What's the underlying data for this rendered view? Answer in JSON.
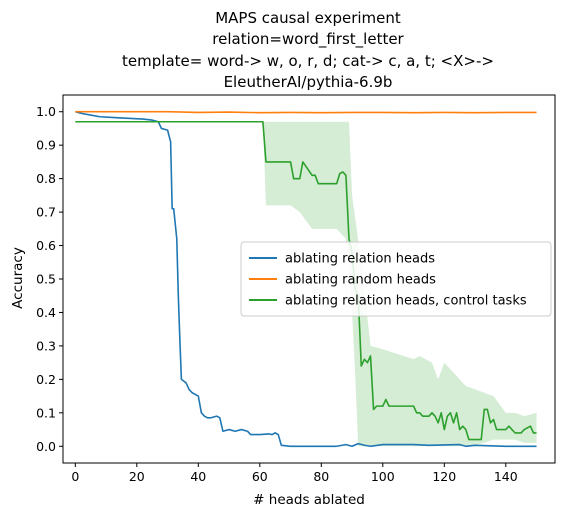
{
  "chart_data": {
    "type": "line",
    "title_lines": [
      "MAPS causal experiment",
      "relation=word_first_letter",
      "template= word-> w, o, r, d; cat-> c, a, t; <X>->",
      "EleutherAI/pythia-6.9b"
    ],
    "xlabel": "# heads ablated",
    "ylabel": "Accuracy",
    "xlim": [
      -4,
      156
    ],
    "ylim": [
      -0.05,
      1.05
    ],
    "xticks": [
      0,
      20,
      40,
      60,
      80,
      100,
      120,
      140
    ],
    "xtick_labels": [
      "0",
      "20",
      "40",
      "60",
      "80",
      "100",
      "120",
      "140"
    ],
    "yticks": [
      0.0,
      0.1,
      0.2,
      0.3,
      0.4,
      0.5,
      0.6,
      0.7,
      0.8,
      0.9,
      1.0
    ],
    "ytick_labels": [
      "0.0",
      "0.1",
      "0.2",
      "0.3",
      "0.4",
      "0.5",
      "0.6",
      "0.7",
      "0.8",
      "0.9",
      "1.0"
    ],
    "grid": false,
    "legend_position": "center-right",
    "series": [
      {
        "name": "ablating relation heads",
        "color": "#1f77b4",
        "points": [
          [
            0,
            1.0
          ],
          [
            2,
            0.995
          ],
          [
            5,
            0.99
          ],
          [
            8,
            0.985
          ],
          [
            12,
            0.983
          ],
          [
            18,
            0.98
          ],
          [
            22,
            0.978
          ],
          [
            25,
            0.975
          ],
          [
            27,
            0.97
          ],
          [
            28,
            0.95
          ],
          [
            30,
            0.945
          ],
          [
            31,
            0.91
          ],
          [
            31.5,
            0.71
          ],
          [
            32,
            0.71
          ],
          [
            33,
            0.62
          ],
          [
            33.5,
            0.45
          ],
          [
            34,
            0.32
          ],
          [
            34.5,
            0.2
          ],
          [
            36,
            0.19
          ],
          [
            37,
            0.17
          ],
          [
            38,
            0.16
          ],
          [
            40,
            0.15
          ],
          [
            41,
            0.1
          ],
          [
            42,
            0.09
          ],
          [
            43,
            0.085
          ],
          [
            44,
            0.085
          ],
          [
            46,
            0.09
          ],
          [
            47,
            0.085
          ],
          [
            48,
            0.045
          ],
          [
            50,
            0.05
          ],
          [
            52,
            0.045
          ],
          [
            54,
            0.05
          ],
          [
            56,
            0.045
          ],
          [
            57,
            0.035
          ],
          [
            60,
            0.035
          ],
          [
            63,
            0.037
          ],
          [
            64,
            0.035
          ],
          [
            65,
            0.04
          ],
          [
            66,
            0.035
          ],
          [
            67,
            0.003
          ],
          [
            70,
            0.0
          ],
          [
            85,
            0.0
          ],
          [
            88,
            0.005
          ],
          [
            90,
            0.0
          ],
          [
            92,
            0.008
          ],
          [
            94,
            0.003
          ],
          [
            96,
            0.0
          ],
          [
            100,
            0.005
          ],
          [
            110,
            0.005
          ],
          [
            115,
            0.003
          ],
          [
            125,
            0.005
          ],
          [
            127,
            0.0
          ],
          [
            130,
            0.003
          ],
          [
            140,
            0.0
          ],
          [
            150,
            0.0
          ]
        ]
      },
      {
        "name": "ablating random heads",
        "color": "#ff7f0e",
        "points": [
          [
            0,
            1.0
          ],
          [
            10,
            1.0
          ],
          [
            20,
            1.0
          ],
          [
            30,
            1.0
          ],
          [
            40,
            0.998
          ],
          [
            50,
            0.999
          ],
          [
            60,
            0.997
          ],
          [
            70,
            0.998
          ],
          [
            80,
            0.997
          ],
          [
            90,
            0.998
          ],
          [
            100,
            0.998
          ],
          [
            110,
            0.997
          ],
          [
            120,
            0.998
          ],
          [
            130,
            0.997
          ],
          [
            140,
            0.998
          ],
          [
            150,
            0.998
          ]
        ]
      },
      {
        "name": "ablating relation heads, control tasks",
        "color": "#2ca02c",
        "points": [
          [
            0,
            0.97
          ],
          [
            20,
            0.97
          ],
          [
            40,
            0.97
          ],
          [
            61,
            0.97
          ],
          [
            62,
            0.85
          ],
          [
            70,
            0.85
          ],
          [
            71,
            0.8
          ],
          [
            73,
            0.8
          ],
          [
            74,
            0.85
          ],
          [
            77,
            0.81
          ],
          [
            78,
            0.81
          ],
          [
            79,
            0.785
          ],
          [
            85,
            0.785
          ],
          [
            86,
            0.815
          ],
          [
            87,
            0.82
          ],
          [
            88,
            0.81
          ],
          [
            89,
            0.62
          ],
          [
            90,
            0.58
          ],
          [
            91,
            0.47
          ],
          [
            92,
            0.45
          ],
          [
            93,
            0.24
          ],
          [
            94,
            0.26
          ],
          [
            95,
            0.25
          ],
          [
            96,
            0.27
          ],
          [
            97,
            0.11
          ],
          [
            98,
            0.12
          ],
          [
            100,
            0.12
          ],
          [
            101,
            0.14
          ],
          [
            102,
            0.12
          ],
          [
            104,
            0.12
          ],
          [
            110,
            0.12
          ],
          [
            111,
            0.1
          ],
          [
            112,
            0.1
          ],
          [
            113,
            0.09
          ],
          [
            115,
            0.09
          ],
          [
            116,
            0.1
          ],
          [
            117,
            0.09
          ],
          [
            118,
            0.07
          ],
          [
            119,
            0.1
          ],
          [
            120,
            0.05
          ],
          [
            121,
            0.09
          ],
          [
            122,
            0.1
          ],
          [
            123,
            0.07
          ],
          [
            124,
            0.1
          ],
          [
            125,
            0.05
          ],
          [
            126,
            0.06
          ],
          [
            127,
            0.05
          ],
          [
            128,
            0.02
          ],
          [
            132,
            0.02
          ],
          [
            133,
            0.11
          ],
          [
            134,
            0.11
          ],
          [
            135,
            0.07
          ],
          [
            136,
            0.08
          ],
          [
            137,
            0.05
          ],
          [
            140,
            0.05
          ],
          [
            141,
            0.06
          ],
          [
            143,
            0.04
          ],
          [
            145,
            0.04
          ],
          [
            146,
            0.05
          ],
          [
            148,
            0.06
          ],
          [
            149,
            0.04
          ],
          [
            150,
            0.04
          ]
        ],
        "band_upper": [
          [
            0,
            0.97
          ],
          [
            61,
            0.97
          ],
          [
            62,
            0.97
          ],
          [
            88,
            0.97
          ],
          [
            89,
            0.97
          ],
          [
            90,
            0.75
          ],
          [
            93,
            0.55
          ],
          [
            96,
            0.3
          ],
          [
            100,
            0.29
          ],
          [
            110,
            0.26
          ],
          [
            112,
            0.27
          ],
          [
            116,
            0.25
          ],
          [
            118,
            0.2
          ],
          [
            120,
            0.25
          ],
          [
            123,
            0.22
          ],
          [
            125,
            0.2
          ],
          [
            127,
            0.18
          ],
          [
            130,
            0.17
          ],
          [
            133,
            0.16
          ],
          [
            136,
            0.15
          ],
          [
            140,
            0.1
          ],
          [
            143,
            0.1
          ],
          [
            146,
            0.09
          ],
          [
            150,
            0.1
          ]
        ],
        "band_lower": [
          [
            0,
            0.97
          ],
          [
            61,
            0.97
          ],
          [
            62,
            0.72
          ],
          [
            70,
            0.72
          ],
          [
            73,
            0.7
          ],
          [
            77,
            0.65
          ],
          [
            85,
            0.65
          ],
          [
            88,
            0.62
          ],
          [
            89,
            0.55
          ],
          [
            90,
            0.4
          ],
          [
            91,
            0.22
          ],
          [
            92,
            0.0
          ],
          [
            125,
            0.0
          ],
          [
            128,
            0.0
          ],
          [
            133,
            0.01
          ],
          [
            136,
            0.02
          ],
          [
            140,
            0.02
          ],
          [
            143,
            0.02
          ],
          [
            146,
            0.01
          ],
          [
            150,
            0.01
          ]
        ]
      }
    ]
  }
}
